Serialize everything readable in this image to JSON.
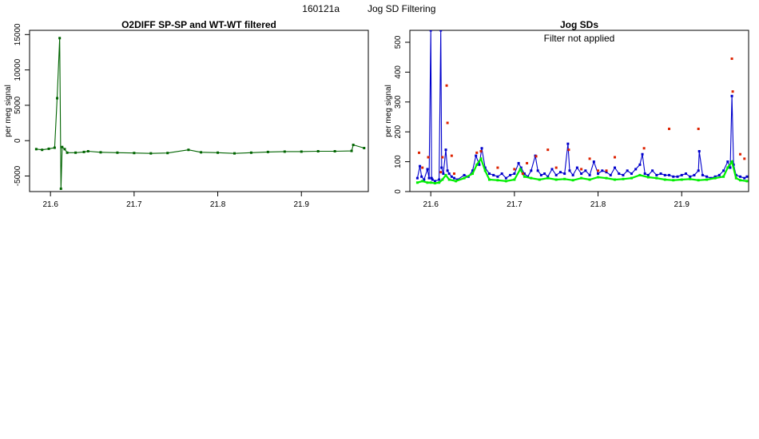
{
  "figure": {
    "title_id": "160121a",
    "title_text": "Jog SD Filtering"
  },
  "colors": {
    "dark_green": "#006400",
    "bright_green": "#00ee00",
    "blue": "#0000cc",
    "red": "#dd2200",
    "connector": "#444444"
  },
  "chart_data": [
    {
      "type": "line",
      "title": "O2DIFF SP-SP and WT-WT filtered",
      "ylabel": "per meg signal",
      "xlabel": "",
      "xlim": [
        21.575,
        21.98
      ],
      "ylim": [
        -7200,
        15600
      ],
      "x_ticks": [
        21.6,
        21.7,
        21.8,
        21.9
      ],
      "x_tick_labels": [
        "21.6",
        "21.7",
        "21.8",
        "21.9"
      ],
      "y_ticks": [
        -5000,
        0,
        5000,
        10000,
        15000
      ],
      "y_tick_labels": [
        "-5000",
        "0",
        "5000",
        "10000",
        "15000"
      ],
      "grid": false,
      "series": [
        {
          "color": "#006400",
          "x": [
            21.583,
            21.59,
            21.598,
            21.605,
            21.608,
            21.611,
            21.6125,
            21.614,
            21.617,
            21.62,
            21.63,
            21.64,
            21.645,
            21.66,
            21.68,
            21.7,
            21.72,
            21.74,
            21.765,
            21.78,
            21.8,
            21.82,
            21.84,
            21.86,
            21.88,
            21.9,
            21.92,
            21.94,
            21.96,
            21.962,
            21.975
          ],
          "y": [
            -1200,
            -1300,
            -1150,
            -1000,
            6000,
            14500,
            -6800,
            -900,
            -1200,
            -1700,
            -1700,
            -1600,
            -1500,
            -1650,
            -1700,
            -1750,
            -1800,
            -1750,
            -1300,
            -1650,
            -1700,
            -1800,
            -1700,
            -1600,
            -1550,
            -1550,
            -1500,
            -1500,
            -1450,
            -600,
            -1050
          ]
        }
      ]
    },
    {
      "type": "line",
      "title": "Jog SDs",
      "annotation": "Filter not applied",
      "ylabel": "per meg signal",
      "xlabel": "",
      "xlim": [
        21.575,
        21.98
      ],
      "ylim": [
        0,
        540
      ],
      "x_ticks": [
        21.6,
        21.7,
        21.8,
        21.9
      ],
      "x_tick_labels": [
        "21.6",
        "21.7",
        "21.8",
        "21.9"
      ],
      "y_ticks": [
        0,
        100,
        200,
        300,
        400,
        500
      ],
      "y_tick_labels": [
        "0",
        "100",
        "200",
        "300",
        "400",
        "500"
      ],
      "grid": false,
      "series": [
        {
          "color": "#0000cc",
          "x": [
            21.584,
            21.587,
            21.589,
            21.592,
            21.596,
            21.598,
            21.6,
            21.601,
            21.602,
            21.605,
            21.61,
            21.612,
            21.613,
            21.615,
            21.618,
            21.62,
            21.622,
            21.625,
            21.628,
            21.632,
            21.64,
            21.645,
            21.65,
            21.654,
            21.658,
            21.661,
            21.665,
            21.67,
            21.675,
            21.68,
            21.685,
            21.69,
            21.695,
            21.7,
            21.705,
            21.708,
            21.712,
            21.716,
            21.72,
            21.725,
            21.728,
            21.732,
            21.736,
            21.74,
            21.745,
            21.75,
            21.755,
            21.76,
            21.764,
            21.766,
            21.77,
            21.775,
            21.78,
            21.785,
            21.79,
            21.795,
            21.8,
            21.805,
            21.81,
            21.815,
            21.82,
            21.825,
            21.83,
            21.835,
            21.84,
            21.845,
            21.85,
            21.853,
            21.856,
            21.86,
            21.865,
            21.87,
            21.875,
            21.88,
            21.885,
            21.89,
            21.895,
            21.9,
            21.905,
            21.91,
            21.915,
            21.92,
            21.921,
            21.925,
            21.93,
            21.935,
            21.94,
            21.945,
            21.95,
            21.955,
            21.958,
            21.96,
            21.962,
            21.965,
            21.97,
            21.975,
            21.978
          ],
          "y": [
            45,
            85,
            50,
            40,
            75,
            45,
            540,
            45,
            40,
            35,
            40,
            540,
            80,
            60,
            140,
            70,
            60,
            50,
            45,
            40,
            55,
            50,
            70,
            120,
            90,
            145,
            80,
            60,
            55,
            50,
            60,
            45,
            55,
            60,
            95,
            80,
            60,
            50,
            70,
            120,
            70,
            55,
            60,
            50,
            75,
            55,
            65,
            60,
            160,
            70,
            55,
            80,
            60,
            70,
            55,
            100,
            60,
            70,
            65,
            55,
            80,
            60,
            55,
            70,
            60,
            75,
            90,
            125,
            60,
            55,
            70,
            55,
            60,
            55,
            55,
            50,
            50,
            55,
            60,
            50,
            55,
            70,
            135,
            55,
            50,
            45,
            50,
            55,
            70,
            100,
            80,
            320,
            90,
            55,
            50,
            45,
            50
          ]
        },
        {
          "color": "#00ee00",
          "x": [
            21.584,
            21.59,
            21.596,
            21.6,
            21.605,
            21.61,
            21.614,
            21.618,
            21.622,
            21.63,
            21.64,
            21.65,
            21.655,
            21.66,
            21.665,
            21.67,
            21.68,
            21.69,
            21.7,
            21.707,
            21.712,
            21.72,
            21.73,
            21.74,
            21.75,
            21.76,
            21.77,
            21.78,
            21.79,
            21.8,
            21.81,
            21.82,
            21.83,
            21.84,
            21.85,
            21.86,
            21.87,
            21.88,
            21.89,
            21.9,
            21.91,
            21.92,
            21.93,
            21.94,
            21.95,
            21.955,
            21.96,
            21.965,
            21.97,
            21.978
          ],
          "y": [
            30,
            35,
            30,
            30,
            28,
            30,
            40,
            55,
            40,
            35,
            45,
            60,
            90,
            110,
            70,
            40,
            38,
            35,
            40,
            75,
            50,
            45,
            40,
            45,
            40,
            42,
            38,
            45,
            40,
            48,
            45,
            40,
            42,
            45,
            55,
            48,
            45,
            40,
            38,
            40,
            42,
            38,
            40,
            45,
            50,
            80,
            100,
            45,
            38,
            35
          ]
        }
      ],
      "outliers": {
        "color": "#dd2200",
        "x": [
          21.586,
          21.59,
          21.597,
          21.612,
          21.614,
          21.619,
          21.62,
          21.625,
          21.628,
          21.655,
          21.66,
          21.68,
          21.7,
          21.71,
          21.715,
          21.726,
          21.74,
          21.75,
          21.765,
          21.78,
          21.79,
          21.8,
          21.81,
          21.82,
          21.855,
          21.885,
          21.92,
          21.96,
          21.961,
          21.97,
          21.975
        ],
        "y": [
          130,
          80,
          115,
          65,
          115,
          355,
          230,
          120,
          60,
          130,
          135,
          80,
          75,
          60,
          95,
          118,
          140,
          80,
          140,
          75,
          110,
          70,
          70,
          115,
          145,
          210,
          210,
          445,
          335,
          125,
          110
        ]
      }
    }
  ]
}
